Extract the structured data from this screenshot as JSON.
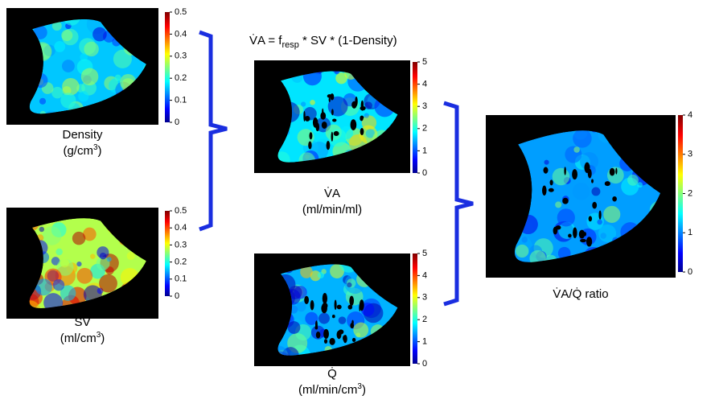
{
  "formula": {
    "lhs": "V̇A = f",
    "sub": "resp",
    "rhs": " * SV * (1-Density)"
  },
  "panels": [
    {
      "label": [
        "Density"
      ],
      "unit": [
        "(g/cm",
        "3",
        ")"
      ],
      "ticks": [
        0,
        0.1,
        0.2,
        0.3,
        0.4,
        0.5
      ]
    },
    {
      "label": [
        "SV"
      ],
      "unit": [
        "(ml/cm",
        "3",
        ")"
      ],
      "ticks": [
        0,
        0.1,
        0.2,
        0.3,
        0.4,
        0.5
      ]
    },
    {
      "label": [
        "V̇A"
      ],
      "unit": [
        "(ml/min/ml)"
      ],
      "ticks": [
        0,
        1,
        2,
        3,
        4,
        5
      ]
    },
    {
      "label": [
        "Q̇"
      ],
      "unit": [
        "(ml/min/cm",
        "3",
        ")"
      ],
      "ticks": [
        0,
        1,
        2,
        3,
        4,
        5
      ]
    },
    {
      "label": [
        "V̇A/Q̇ ratio"
      ],
      "unit": [],
      "ticks": [
        0,
        1,
        2,
        3,
        4
      ]
    }
  ]
}
